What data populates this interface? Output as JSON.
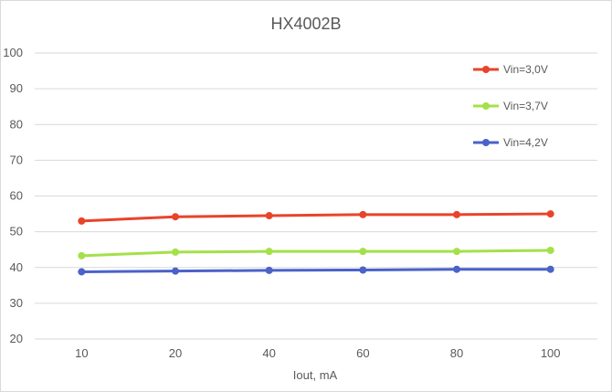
{
  "chart_data": {
    "type": "line",
    "title": "HX4002B",
    "xlabel": "Iout, mA",
    "ylabel": "",
    "categories": [
      "10",
      "20",
      "40",
      "60",
      "80",
      "100"
    ],
    "ylim": [
      20,
      100
    ],
    "yticks": [
      20,
      30,
      40,
      50,
      60,
      70,
      80,
      90,
      100
    ],
    "grid": true,
    "legend_position": "top-right",
    "series": [
      {
        "name": "Vin=3,0V",
        "color": "#e8442a",
        "values": [
          53.0,
          54.2,
          54.5,
          54.8,
          54.8,
          55.0
        ]
      },
      {
        "name": "Vin=3,7V",
        "color": "#a4e04a",
        "values": [
          43.3,
          44.3,
          44.5,
          44.5,
          44.5,
          44.8
        ]
      },
      {
        "name": "Vin=4,2V",
        "color": "#4a62c9",
        "values": [
          38.8,
          39.0,
          39.2,
          39.3,
          39.5,
          39.5
        ]
      }
    ]
  }
}
